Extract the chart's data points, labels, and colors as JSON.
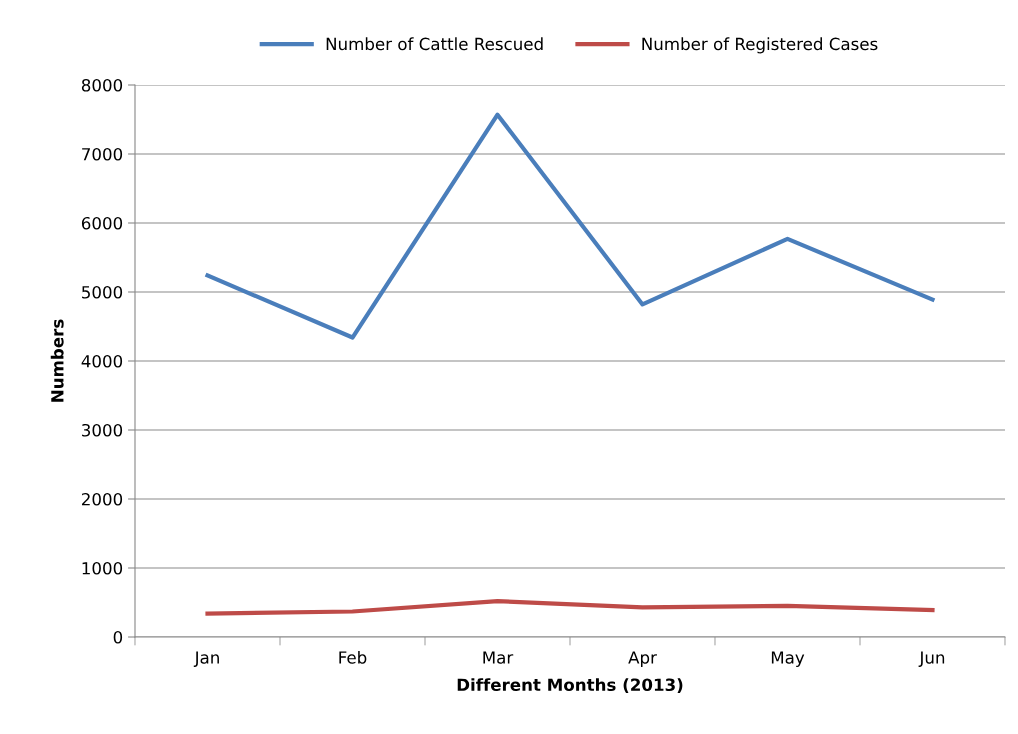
{
  "chart_data": {
    "type": "line",
    "xlabel": "Different Months (2013)",
    "ylabel": "Numbers",
    "categories": [
      "Jan",
      "Feb",
      "Mar",
      "Apr",
      "May",
      "Jun"
    ],
    "series": [
      {
        "name": "Number of Cattle Rescued",
        "color": "#4a7ebb",
        "values": [
          5240,
          4340,
          7570,
          4820,
          5770,
          4890
        ]
      },
      {
        "name": "Number of Registered Cases",
        "color": "#be4b48",
        "values": [
          340,
          370,
          520,
          430,
          450,
          390
        ]
      }
    ],
    "ylim": [
      0,
      8000
    ],
    "yticks": [
      0,
      1000,
      2000,
      3000,
      4000,
      5000,
      6000,
      7000,
      8000
    ],
    "grid": "y",
    "legend": "top",
    "marker": "none",
    "line_style": "solid"
  }
}
